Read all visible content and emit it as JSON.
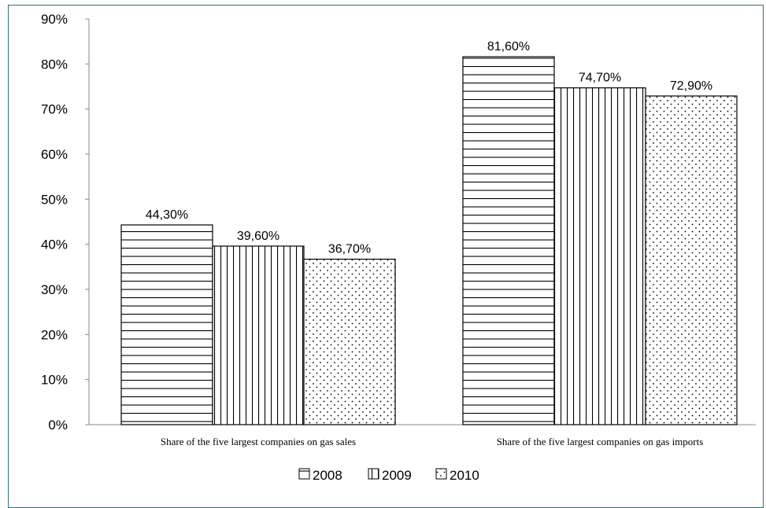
{
  "chart_data": {
    "type": "bar",
    "categories": [
      "Share  of the five  largest companies on gas  sales",
      "Share  of the five  largest companies on gas imports"
    ],
    "series": [
      {
        "name": "2008",
        "values": [
          44.3,
          81.6
        ],
        "labels": [
          "44,30%",
          "81,60%"
        ],
        "pattern": "horizontal-lines"
      },
      {
        "name": "2009",
        "values": [
          39.6,
          74.7
        ],
        "labels": [
          "39,60%",
          "74,70%"
        ],
        "pattern": "vertical-lines"
      },
      {
        "name": "2010",
        "values": [
          36.7,
          72.9
        ],
        "labels": [
          "36,70%",
          "72,90%"
        ],
        "pattern": "dots"
      }
    ],
    "ylim": [
      0,
      90
    ],
    "yticks": [
      "0%",
      "10%",
      "20%",
      "30%",
      "40%",
      "50%",
      "60%",
      "70%",
      "80%",
      "90%"
    ],
    "grid": false,
    "legend_position": "bottom",
    "title": "",
    "xlabel": "",
    "ylabel": ""
  },
  "colors": {
    "frame": "#2f6f73",
    "ink": "#000000",
    "fill": "#ffffff"
  }
}
